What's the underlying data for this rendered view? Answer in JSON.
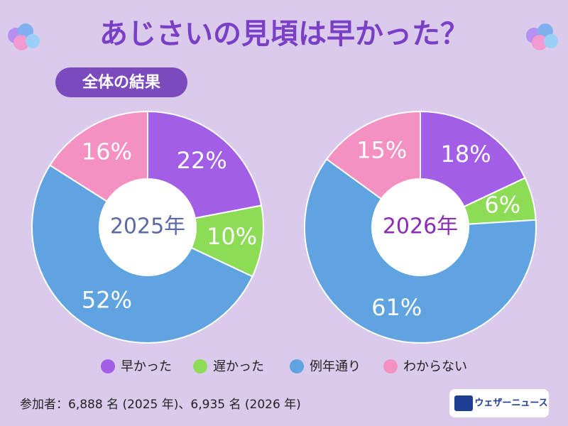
{
  "header": {
    "title": "あじさいの見頃は早かった？",
    "badge": "全体の結果"
  },
  "chart_data": [
    {
      "type": "pie",
      "center_label": "2025年",
      "center_color": "#5b6aa6",
      "categories": [
        "早かった",
        "遅かった",
        "例年通り",
        "わからない"
      ],
      "values": [
        22,
        10,
        52,
        16
      ],
      "value_labels": [
        "22%",
        "10%",
        "52%",
        "16%"
      ],
      "colors": [
        "#a35ee8",
        "#8ddc56",
        "#5fa4e0",
        "#f490c2"
      ]
    },
    {
      "type": "pie",
      "center_label": "2026年",
      "center_color": "#8a2cb6",
      "categories": [
        "早かった",
        "遅かった",
        "例年通り",
        "わからない"
      ],
      "values": [
        18,
        6,
        61,
        15
      ],
      "value_labels": [
        "18%",
        "6%",
        "61%",
        "15%"
      ],
      "colors": [
        "#a35ee8",
        "#8ddc56",
        "#5fa4e0",
        "#f490c2"
      ]
    }
  ],
  "footer": {
    "note": "参加者：6,888 名 (2025 年)、6,935 名 (2026 年)",
    "logo": "ウェザーニュース"
  }
}
